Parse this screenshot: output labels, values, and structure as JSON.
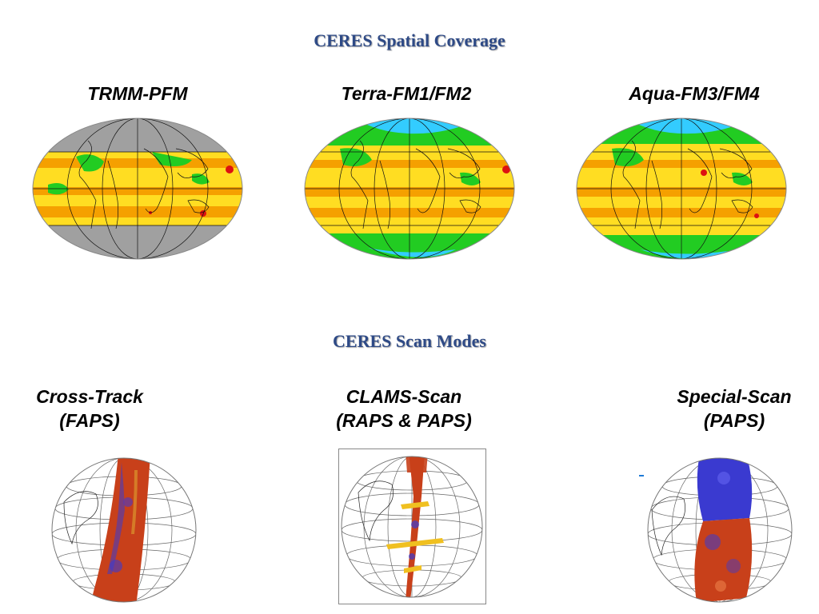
{
  "coverage_heading": "CERES Spatial Coverage",
  "scan_heading": "CERES Scan Modes",
  "instruments": [
    {
      "label": "TRMM-PFM",
      "polar_fill": "#a0a0a0",
      "arctic_fill": "#a0a0a0"
    },
    {
      "label": "Terra-FM1/FM2",
      "polar_fill": "#33ccff",
      "arctic_fill": "#33ccff"
    },
    {
      "label": "Aqua-FM3/FM4",
      "polar_fill": "#33ccff",
      "arctic_fill": "#33ccff"
    }
  ],
  "scan_modes": [
    {
      "line1": "Cross-Track",
      "line2": "(FAPS)"
    },
    {
      "line1": "CLAMS-Scan",
      "line2": "(RAPS & PAPS)"
    },
    {
      "line1": "Special-Scan",
      "line2": "(PAPS)"
    }
  ],
  "colors": {
    "heading": "#2e4a86",
    "map_base": "#ffdd22",
    "map_band": "#f5a000",
    "map_land": "#22cc22",
    "map_hot": "#dd1111",
    "swath_red": "#c8401a",
    "swath_blue": "#3a3ad0",
    "accent_dash": "#1e7ad6"
  }
}
